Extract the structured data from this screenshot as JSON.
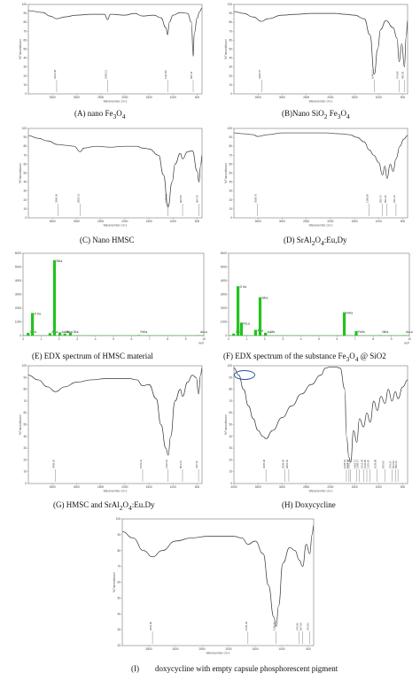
{
  "chart_data": [
    {
      "id": "A",
      "type": "line",
      "caption": "(A) nano Fe3O4",
      "caption_parts": {
        "pre": "(A) nano Fe",
        "s1": "3",
        "mid": "O",
        "s2": "4"
      },
      "xlim": [
        4000,
        400
      ],
      "ylim": [
        0,
        100
      ],
      "xticks": [
        3500,
        3000,
        2500,
        2000,
        1500,
        1000,
        500
      ],
      "yticks": [
        0,
        10,
        20,
        30,
        40,
        50,
        60,
        70,
        80,
        90,
        100
      ],
      "xlabel": "Wavenumber cm-1",
      "ylabel": "%Transmittance",
      "peaks": [
        {
          "x": 3413.08,
          "label": "3413.08"
        },
        {
          "x": 2359.11,
          "label": "2359.11"
        },
        {
          "x": 1112.8,
          "label": "1112.80"
        },
        {
          "x": 583.11,
          "label": "583.11"
        }
      ],
      "x": [
        4000,
        3700,
        3550,
        3413,
        3250,
        3000,
        2700,
        2420,
        2359,
        2300,
        2000,
        1800,
        1630,
        1400,
        1250,
        1150,
        1112,
        1080,
        1000,
        850,
        700,
        620,
        583,
        560,
        500,
        450,
        400
      ],
      "y": [
        93,
        91,
        87,
        84,
        86,
        88,
        89,
        89,
        83,
        89,
        88,
        90,
        87,
        88,
        85,
        74,
        66,
        80,
        88,
        91,
        90,
        80,
        42,
        68,
        85,
        92,
        96
      ]
    },
    {
      "id": "B",
      "type": "line",
      "caption": "(B)Nano SiO2 Fe3O4",
      "caption_parts": {
        "pre": "(B)Nano  SiO",
        "s1": "2",
        "mid": " Fe",
        "s2": "3",
        "mid2": "O",
        "s3": "4"
      },
      "xlim": [
        4000,
        400
      ],
      "ylim": [
        0,
        100
      ],
      "xticks": [
        3500,
        3000,
        2500,
        2000,
        1500,
        1000,
        500
      ],
      "yticks": [
        0,
        10,
        20,
        30,
        40,
        50,
        60,
        70,
        80,
        90,
        100
      ],
      "xlabel": "Wavenumber cm-1",
      "ylabel": "%Transmittance",
      "peaks": [
        {
          "x": 3426.07,
          "label": "3426.07"
        },
        {
          "x": 1090.11,
          "label": "1090.11"
        },
        {
          "x": 574.85,
          "label": "574.85"
        },
        {
          "x": 465.91,
          "label": "465.91"
        }
      ],
      "x": [
        4000,
        3800,
        3600,
        3426,
        3300,
        3000,
        2700,
        2400,
        2100,
        1900,
        1700,
        1500,
        1300,
        1180,
        1090,
        1020,
        960,
        850,
        700,
        620,
        575,
        520,
        466,
        430,
        400
      ],
      "y": [
        92,
        90,
        86,
        81,
        84,
        88,
        89,
        90,
        90,
        90,
        89,
        88,
        84,
        66,
        22,
        50,
        72,
        82,
        74,
        62,
        36,
        56,
        30,
        64,
        82
      ]
    },
    {
      "id": "C",
      "type": "line",
      "caption": "(C) Nano HMSC",
      "xlim": [
        4000,
        400
      ],
      "ylim": [
        0,
        100
      ],
      "xticks": [
        3500,
        3000,
        2500,
        2000,
        1500,
        1000,
        500
      ],
      "yticks": [
        0,
        10,
        20,
        30,
        40,
        50,
        60,
        70,
        80,
        90,
        100
      ],
      "xlabel": "Wavenumber cm-1",
      "ylabel": "%Transmittance",
      "peaks": [
        {
          "x": 3386.06,
          "label": "3386.06"
        },
        {
          "x": 2926.21,
          "label": "2926.21"
        },
        {
          "x": 1105.65,
          "label": "1105.65"
        },
        {
          "x": 803.5,
          "label": "803.50"
        },
        {
          "x": 464.75,
          "label": "464.75"
        }
      ],
      "x": [
        4000,
        3800,
        3600,
        3386,
        3200,
        3050,
        2926,
        2850,
        2600,
        2300,
        2000,
        1750,
        1630,
        1500,
        1300,
        1200,
        1105,
        1020,
        960,
        850,
        803,
        700,
        600,
        500,
        464,
        430,
        400
      ],
      "y": [
        92,
        89,
        86,
        82,
        81,
        80,
        74,
        78,
        80,
        79,
        80,
        80,
        78,
        77,
        70,
        48,
        12,
        40,
        60,
        72,
        66,
        74,
        75,
        52,
        40,
        58,
        70
      ]
    },
    {
      "id": "D",
      "type": "line",
      "caption": "(D) SrAl2O4:Eu,Dy",
      "caption_parts": {
        "pre": "(D) SrAl",
        "s1": "2",
        "mid": "O",
        "s2": "4",
        "post": ":Eu,Dy"
      },
      "xlim": [
        4000,
        400
      ],
      "ylim": [
        0,
        100
      ],
      "xticks": [
        3500,
        3000,
        2500,
        2000,
        1500,
        1000,
        500
      ],
      "yticks": [
        0,
        10,
        20,
        30,
        40,
        50,
        60,
        70,
        80,
        90,
        100
      ],
      "xlabel": "Wavenumber cm-1",
      "ylabel": "%Transmittance",
      "peaks": [
        {
          "x": 3508.76,
          "label": "3508.76"
        },
        {
          "x": 1196.85,
          "label": "1196.85"
        },
        {
          "x": 920.73,
          "label": "920.73"
        },
        {
          "x": 826.4,
          "label": "826.40"
        },
        {
          "x": 640.13,
          "label": "640.13"
        }
      ],
      "x": [
        4000,
        3800,
        3600,
        3508,
        3300,
        3000,
        2700,
        2400,
        2100,
        1800,
        1600,
        1450,
        1300,
        1196,
        1100,
        1000,
        920,
        870,
        826,
        760,
        700,
        640,
        560,
        480,
        400
      ],
      "y": [
        95,
        94,
        93,
        91,
        93,
        95,
        95,
        95,
        95,
        94,
        93,
        90,
        85,
        76,
        70,
        62,
        48,
        58,
        44,
        60,
        52,
        66,
        80,
        88,
        92
      ]
    },
    {
      "id": "E",
      "type": "bar",
      "caption": "(E) EDX spectrum of HMSC material",
      "xlim": [
        0,
        10
      ],
      "ylim": [
        0,
        6000
      ],
      "xticks": [
        0,
        1,
        2,
        3,
        4,
        5,
        6,
        7,
        8,
        9,
        10
      ],
      "yticks": [
        0,
        1000,
        2000,
        3000,
        4000,
        5000,
        6000
      ],
      "xunit": "keV",
      "bars": [
        {
          "x": 0.28,
          "v": 200,
          "label": "C Ka"
        },
        {
          "x": 0.52,
          "v": 1650,
          "label": "O Ka"
        },
        {
          "x": 1.49,
          "v": 180,
          "label": "AlKa"
        },
        {
          "x": 1.74,
          "v": 5500,
          "label": "SiKa"
        },
        {
          "x": 2.04,
          "v": 230,
          "label": "AuMa"
        },
        {
          "x": 2.31,
          "v": 150,
          "label": "SKa"
        },
        {
          "x": 2.62,
          "v": 220,
          "label": "ClKa"
        },
        {
          "x": 6.4,
          "v": 40,
          "label": "FeKa"
        },
        {
          "x": 9.71,
          "v": 30,
          "label": "AuLa"
        }
      ]
    },
    {
      "id": "F",
      "type": "bar",
      "caption": "(F) EDX spectrum of the substance Fe3O4 @ SiO2",
      "caption_parts": {
        "pre": "(F) EDX spectrum of the substance Fe",
        "s1": "3",
        "mid": "O",
        "s2": "4",
        "post": " @ SiO2"
      },
      "xlim": [
        0,
        10
      ],
      "ylim": [
        0,
        6000
      ],
      "xticks": [
        0,
        1,
        2,
        3,
        4,
        5,
        6,
        7,
        8,
        9,
        10
      ],
      "yticks": [
        0,
        1000,
        2000,
        3000,
        4000,
        5000,
        6000
      ],
      "xunit": "keV",
      "bars": [
        {
          "x": 0.28,
          "v": 150,
          "label": "C Ka"
        },
        {
          "x": 0.52,
          "v": 3600,
          "label": "O Ka"
        },
        {
          "x": 0.71,
          "v": 950,
          "label": "FeLa"
        },
        {
          "x": 1.49,
          "v": 420,
          "label": "AlKa"
        },
        {
          "x": 1.74,
          "v": 2800,
          "label": "SiKa"
        },
        {
          "x": 2.04,
          "v": 210,
          "label": "AuMa"
        },
        {
          "x": 6.4,
          "v": 1700,
          "label": "FeKa"
        },
        {
          "x": 7.06,
          "v": 330,
          "label": "FeKb"
        },
        {
          "x": 8.4,
          "v": 30,
          "label": "NiKa"
        },
        {
          "x": 9.71,
          "v": 30,
          "label": "AuLa"
        }
      ]
    },
    {
      "id": "G",
      "type": "line",
      "caption": "(G) HMSC and SrAl2O4:Eu.Dy",
      "caption_parts": {
        "pre": "(G) HMSC and SrAl",
        "s1": "2",
        "mid": "O",
        "s2": "4",
        "post": ":Eu.Dy"
      },
      "xlim": [
        4000,
        400
      ],
      "ylim": [
        0,
        100
      ],
      "xticks": [
        3500,
        3000,
        2500,
        2000,
        1500,
        1000,
        500
      ],
      "yticks": [
        0,
        10,
        20,
        30,
        40,
        50,
        60,
        70,
        80,
        90,
        100
      ],
      "xlabel": "Wavenumber cm-1",
      "ylabel": "%Transmittance",
      "peaks": [
        {
          "x": 3438.26,
          "label": "3438.26"
        },
        {
          "x": 1631.12,
          "label": "1631.12"
        },
        {
          "x": 1102.19,
          "label": "1102.19"
        },
        {
          "x": 804.24,
          "label": "804.24"
        },
        {
          "x": 472.15,
          "label": "472.15"
        }
      ],
      "x": [
        4000,
        3800,
        3600,
        3438,
        3250,
        3000,
        2700,
        2400,
        2100,
        1900,
        1750,
        1631,
        1500,
        1350,
        1250,
        1150,
        1102,
        1050,
        960,
        850,
        804,
        700,
        600,
        520,
        472,
        430,
        400
      ],
      "y": [
        92,
        88,
        82,
        78,
        82,
        86,
        88,
        89,
        89,
        89,
        88,
        83,
        84,
        72,
        50,
        30,
        24,
        40,
        70,
        80,
        74,
        86,
        92,
        90,
        76,
        92,
        98
      ]
    },
    {
      "id": "H",
      "type": "line",
      "caption": "(H) Doxycycline",
      "xlim": [
        4000,
        400
      ],
      "ylim": [
        0,
        100
      ],
      "xticks": [
        4000,
        3500,
        3000,
        2500,
        2000,
        1500,
        1000,
        500
      ],
      "yticks": [
        0,
        10,
        20,
        30,
        40,
        50,
        60,
        70,
        80,
        90,
        100
      ],
      "xlabel": "Wavenumber cm-1",
      "ylabel": "%Transmittance",
      "peaks": [
        {
          "x": 3335.68,
          "label": "3335.68"
        },
        {
          "x": 2939.69,
          "label": "2939.69"
        },
        {
          "x": 2862.56,
          "label": "2862.56"
        },
        {
          "x": 1668.19,
          "label": "1668.19"
        },
        {
          "x": 1614.14,
          "label": "1614.14"
        },
        {
          "x": 1581.36,
          "label": "1581.36"
        },
        {
          "x": 1452.17,
          "label": "1452.17"
        },
        {
          "x": 1398.17,
          "label": "1398.17"
        },
        {
          "x": 1313.29,
          "label": "1313.29"
        },
        {
          "x": 1244.8,
          "label": "1244.80"
        },
        {
          "x": 1176.45,
          "label": "1176.45"
        },
        {
          "x": 1029.89,
          "label": "1029.89"
        },
        {
          "x": 870.0,
          "label": "870.00"
        },
        {
          "x": 724.21,
          "label": "724.21"
        },
        {
          "x": 652.84,
          "label": "652.84"
        },
        {
          "x": 599.43,
          "label": "599.43"
        }
      ],
      "x": [
        4000,
        3900,
        3800,
        3700,
        3600,
        3500,
        3400,
        3335,
        3200,
        3000,
        2800,
        2600,
        2400,
        2200,
        2100,
        2000,
        1900,
        1800,
        1700,
        1668,
        1614,
        1581,
        1520,
        1452,
        1398,
        1313,
        1245,
        1176,
        1100,
        1030,
        950,
        870,
        800,
        724,
        653,
        599,
        500,
        400
      ],
      "y": [
        98,
        92,
        80,
        66,
        55,
        45,
        40,
        38,
        45,
        56,
        66,
        76,
        84,
        92,
        98,
        99,
        99,
        98,
        80,
        40,
        22,
        18,
        45,
        35,
        55,
        48,
        60,
        52,
        70,
        62,
        74,
        68,
        80,
        70,
        78,
        72,
        82,
        88
      ]
    },
    {
      "id": "I",
      "type": "line",
      "caption": "(I) doxycycline with empty capsule phosphorescent pigment",
      "caption_parts": {
        "pre": "(I)",
        "post": "doxycycline with empty capsule phosphorescent pigment"
      },
      "xlim": [
        4000,
        400
      ],
      "ylim": [
        20,
        100
      ],
      "xticks": [
        3500,
        3000,
        2500,
        2000,
        1500,
        1000,
        500
      ],
      "yticks": [
        20,
        30,
        40,
        50,
        60,
        70,
        80,
        90,
        100
      ],
      "xlabel": "Wavenumber cm-1",
      "ylabel": "%Transmittance",
      "peaks": [
        {
          "x": 3431.96,
          "label": "3431.96"
        },
        {
          "x": 1636.39,
          "label": "1636.39"
        },
        {
          "x": 1106.51,
          "label": "1106.51"
        },
        {
          "x": 670.96,
          "label": "670.96"
        },
        {
          "x": 607.08,
          "label": "607.08"
        },
        {
          "x": 473.83,
          "label": "473.83"
        }
      ],
      "x": [
        4000,
        3800,
        3600,
        3431,
        3250,
        3000,
        2700,
        2400,
        2100,
        1900,
        1750,
        1636,
        1500,
        1350,
        1250,
        1150,
        1106,
        1060,
        980,
        850,
        750,
        671,
        607,
        540,
        473,
        430,
        400
      ],
      "y": [
        92,
        88,
        80,
        76,
        80,
        86,
        88,
        89,
        89,
        89,
        88,
        84,
        86,
        78,
        58,
        38,
        32,
        45,
        72,
        82,
        80,
        74,
        70,
        84,
        78,
        90,
        96
      ]
    }
  ]
}
